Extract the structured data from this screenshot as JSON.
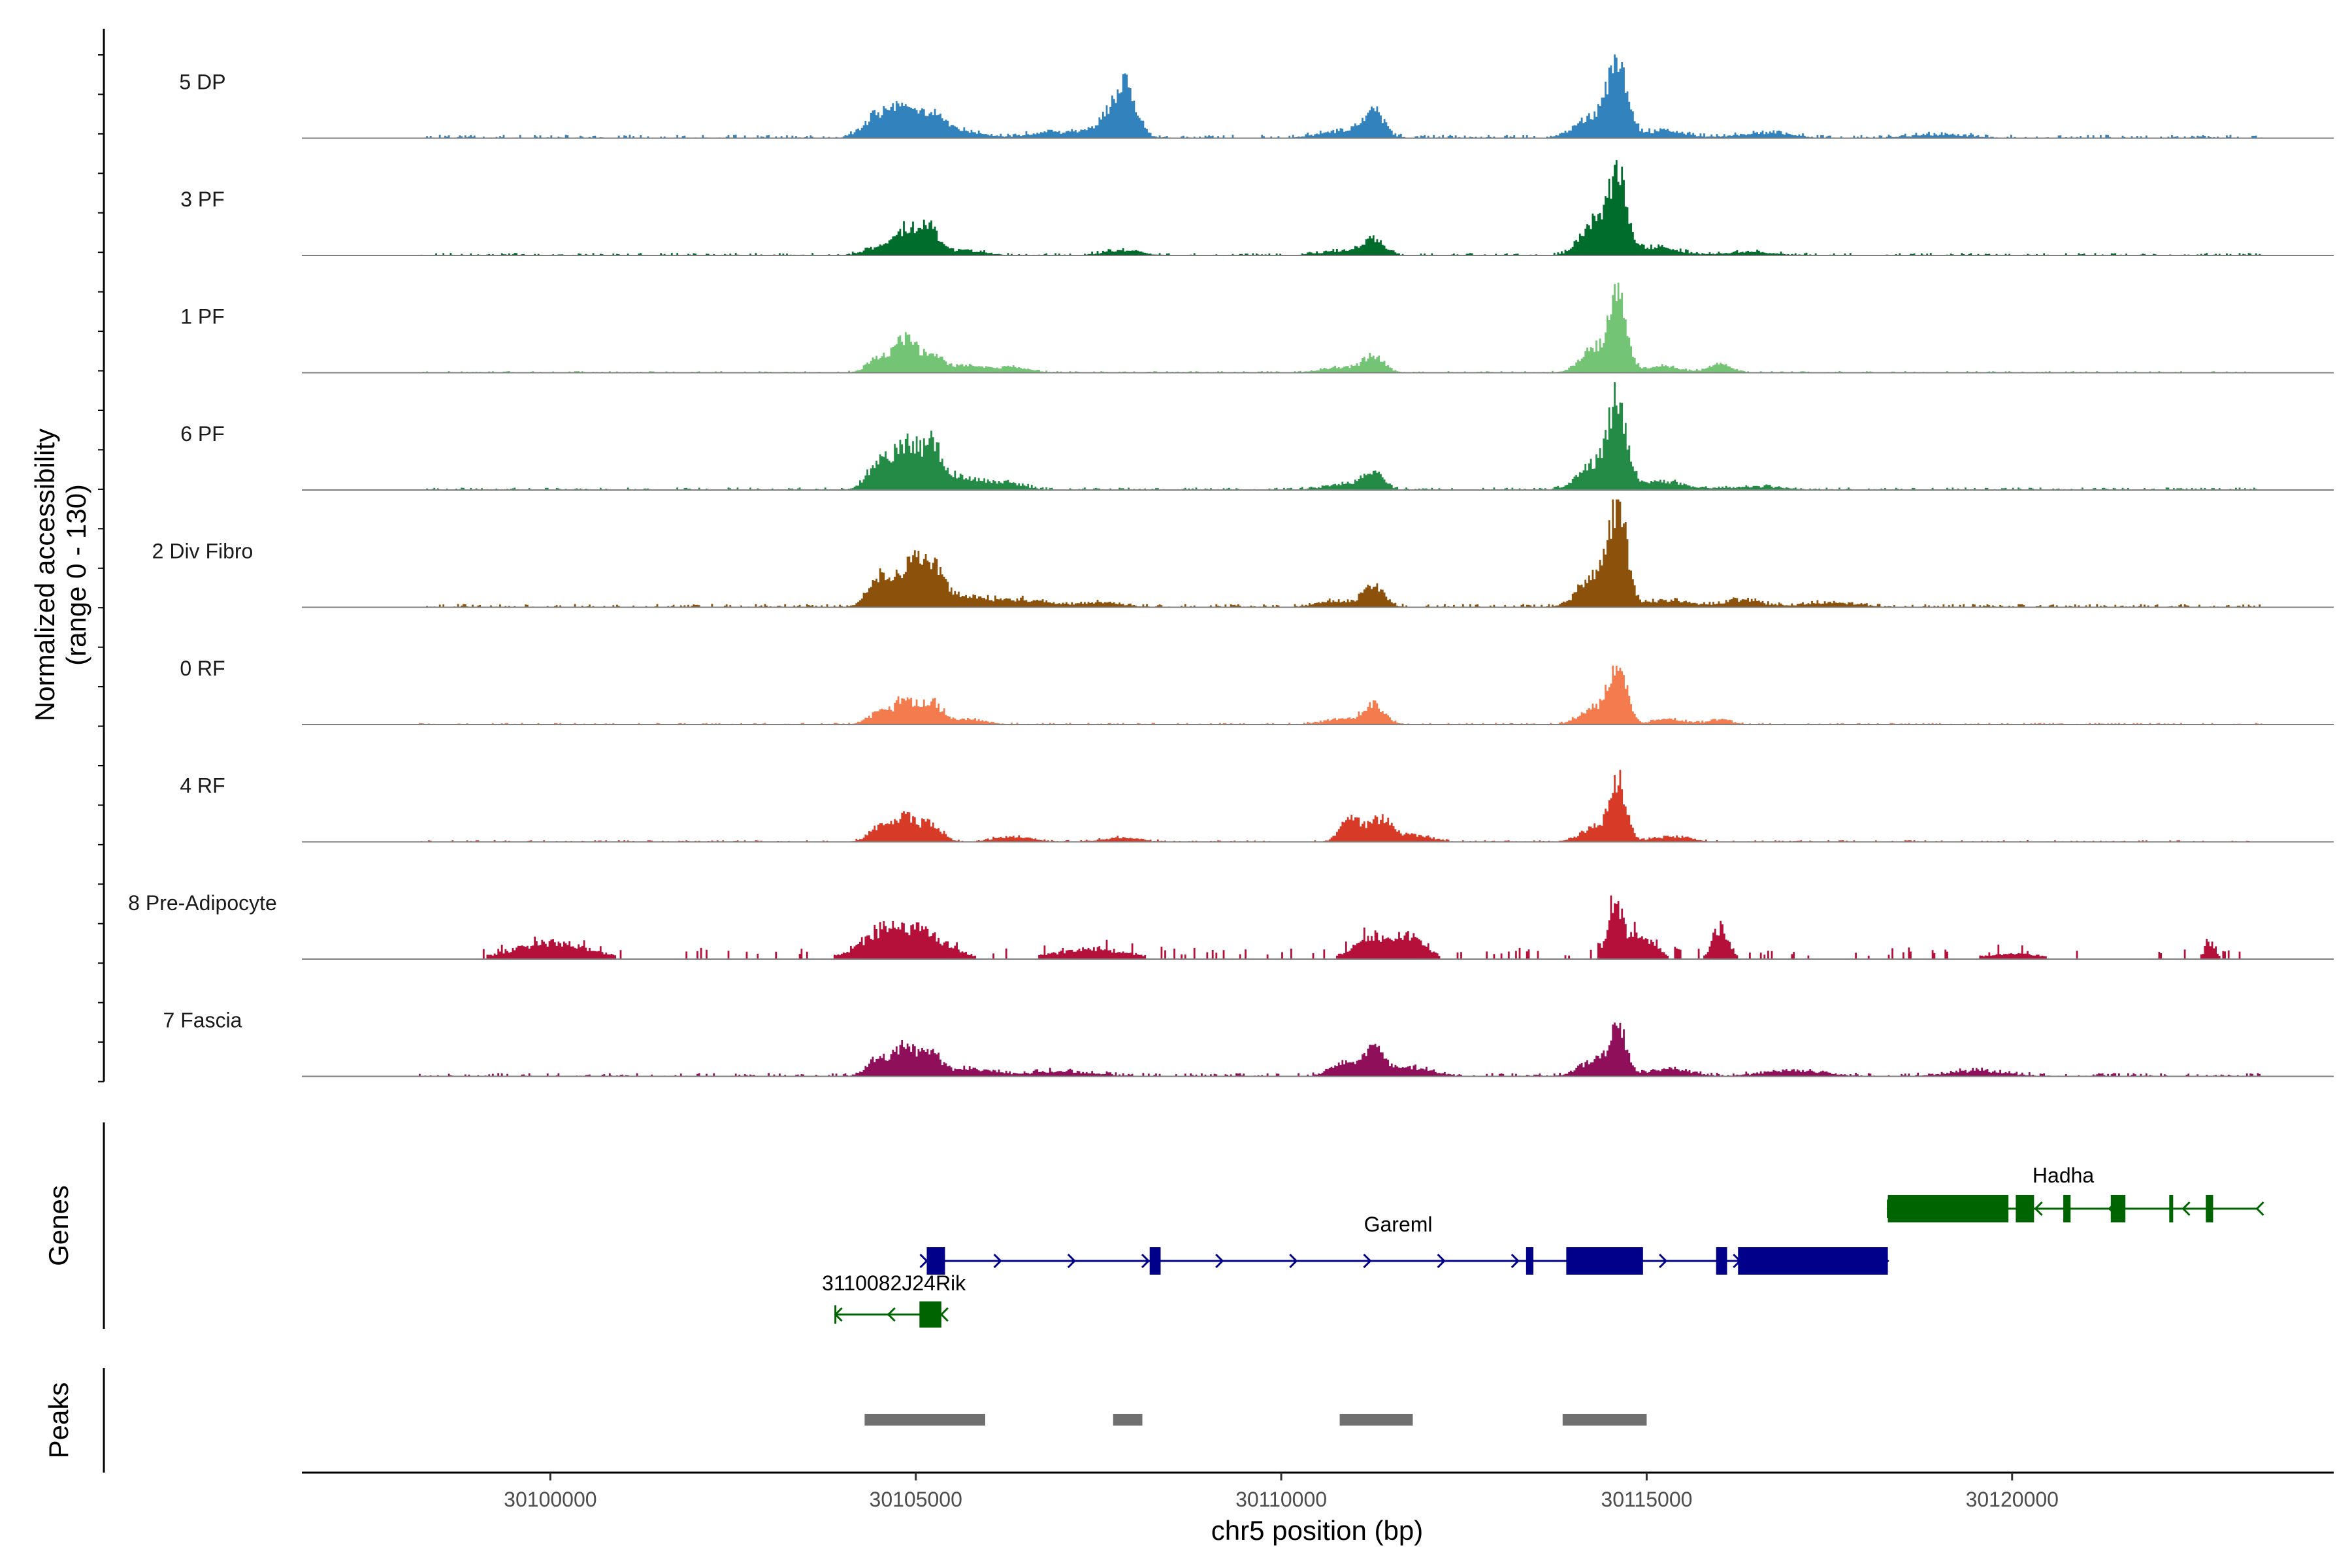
{
  "chart_data": {
    "type": "coverage_track",
    "chromosome": "chr5",
    "xlabel": "chr5 position (bp)",
    "ylabel_line1": "Normalized accessibility",
    "ylabel_line2": "(range 0 - 130)",
    "xlim": [
      30096600,
      30124400
    ],
    "ylim": [
      0,
      130
    ],
    "x_ticks": [
      30100000,
      30105000,
      30110000,
      30115000,
      30120000
    ],
    "x_tick_labels": [
      "30100000",
      "30105000",
      "30110000",
      "30115000",
      "30120000"
    ],
    "data_range": [
      30098200,
      30123400
    ],
    "tracks": [
      {
        "name": "5 DP",
        "color": "#3182bd",
        "baseline": 4,
        "noise": 3,
        "peaks": [
          [
            30104500,
            30,
            200
          ],
          [
            30104850,
            25,
            160
          ],
          [
            30105200,
            22,
            180
          ],
          [
            30105600,
            8,
            300
          ],
          [
            30107850,
            55,
            150
          ],
          [
            30107600,
            18,
            250
          ],
          [
            30106800,
            6,
            300
          ],
          [
            30111250,
            33,
            140
          ],
          [
            30110800,
            8,
            300
          ],
          [
            30114600,
            85,
            120
          ],
          [
            30114300,
            28,
            260
          ],
          [
            30115200,
            8,
            300
          ],
          [
            30116600,
            6,
            350
          ],
          [
            30119000,
            4,
            400
          ]
        ]
      },
      {
        "name": "3 PF",
        "color": "#006d2c",
        "baseline": 3,
        "noise": 2,
        "peaks": [
          [
            30104500,
            10,
            200
          ],
          [
            30104850,
            28,
            150
          ],
          [
            30105150,
            32,
            130
          ],
          [
            30105600,
            6,
            300
          ],
          [
            30107800,
            6,
            250
          ],
          [
            30111250,
            18,
            140
          ],
          [
            30110800,
            5,
            300
          ],
          [
            30114600,
            80,
            120
          ],
          [
            30114300,
            40,
            200
          ],
          [
            30115100,
            10,
            300
          ],
          [
            30116400,
            4,
            350
          ]
        ]
      },
      {
        "name": "1 PF",
        "color": "#74c476",
        "baseline": 2,
        "noise": 2,
        "peaks": [
          [
            30104500,
            18,
            160
          ],
          [
            30104850,
            38,
            140
          ],
          [
            30105200,
            22,
            150
          ],
          [
            30105700,
            8,
            250
          ],
          [
            30106300,
            6,
            250
          ],
          [
            30111250,
            20,
            140
          ],
          [
            30110800,
            6,
            250
          ],
          [
            30114600,
            90,
            110
          ],
          [
            30114300,
            30,
            200
          ],
          [
            30115200,
            8,
            250
          ],
          [
            30116000,
            10,
            150
          ]
        ]
      },
      {
        "name": "6 PF",
        "color": "#238b45",
        "baseline": 3,
        "noise": 2,
        "peaks": [
          [
            30104500,
            35,
            160
          ],
          [
            30104850,
            48,
            150
          ],
          [
            30105200,
            50,
            150
          ],
          [
            30105600,
            14,
            250
          ],
          [
            30106200,
            8,
            250
          ],
          [
            30111250,
            20,
            140
          ],
          [
            30110800,
            6,
            250
          ],
          [
            30114600,
            95,
            120
          ],
          [
            30114300,
            32,
            220
          ],
          [
            30115200,
            10,
            300
          ],
          [
            30116500,
            4,
            400
          ]
        ]
      },
      {
        "name": "2 Div Fibro",
        "color": "#8c510a",
        "baseline": 4,
        "noise": 3,
        "peaks": [
          [
            30104500,
            35,
            160
          ],
          [
            30104900,
            45,
            150
          ],
          [
            30105200,
            48,
            160
          ],
          [
            30105700,
            12,
            300
          ],
          [
            30106500,
            8,
            300
          ],
          [
            30107500,
            6,
            300
          ],
          [
            30111250,
            28,
            140
          ],
          [
            30110700,
            7,
            250
          ],
          [
            30114600,
            115,
            120
          ],
          [
            30114300,
            40,
            220
          ],
          [
            30115300,
            8,
            300
          ],
          [
            30116300,
            8,
            250
          ],
          [
            30117500,
            5,
            400
          ]
        ]
      },
      {
        "name": "0 RF",
        "color": "#f47b4d",
        "baseline": 2,
        "noise": 2,
        "peaks": [
          [
            30104500,
            14,
            160
          ],
          [
            30104850,
            28,
            140
          ],
          [
            30105200,
            26,
            140
          ],
          [
            30105700,
            6,
            250
          ],
          [
            30111250,
            25,
            140
          ],
          [
            30110800,
            6,
            250
          ],
          [
            30114600,
            70,
            110
          ],
          [
            30114300,
            22,
            200
          ],
          [
            30115300,
            6,
            250
          ],
          [
            30116000,
            6,
            150
          ]
        ]
      },
      {
        "name": "4 RF",
        "color": "#d73b27",
        "baseline": 2,
        "noise": 2,
        "peaks": [
          [
            30104500,
            18,
            150
          ],
          [
            30104850,
            28,
            140
          ],
          [
            30105200,
            22,
            140
          ],
          [
            30106300,
            6,
            250
          ],
          [
            30107800,
            5,
            250
          ],
          [
            30110950,
            30,
            140
          ],
          [
            30111350,
            26,
            140
          ],
          [
            30111800,
            8,
            250
          ],
          [
            30114600,
            70,
            110
          ],
          [
            30114300,
            18,
            200
          ],
          [
            30115300,
            6,
            250
          ]
        ]
      },
      {
        "name": "8 Pre-Adipocyte",
        "color": "#b4103a",
        "baseline": 3,
        "noise": 10,
        "sparse": true,
        "peaks": [
          [
            30100000,
            20,
            500
          ],
          [
            30105000,
            30,
            400
          ],
          [
            30104500,
            18,
            350
          ],
          [
            30107400,
            12,
            500
          ],
          [
            30111300,
            25,
            300
          ],
          [
            30111800,
            20,
            200
          ],
          [
            30114550,
            60,
            100
          ],
          [
            30114900,
            28,
            200
          ],
          [
            30116000,
            38,
            110
          ],
          [
            30120000,
            6,
            500
          ],
          [
            30122700,
            18,
            80
          ]
        ]
      },
      {
        "name": "7 Fascia",
        "color": "#8f0f5a",
        "baseline": 4,
        "noise": 3,
        "peaks": [
          [
            30104500,
            20,
            160
          ],
          [
            30104850,
            32,
            140
          ],
          [
            30105200,
            24,
            150
          ],
          [
            30105800,
            8,
            300
          ],
          [
            30107000,
            6,
            400
          ],
          [
            30110800,
            16,
            160
          ],
          [
            30111250,
            32,
            150
          ],
          [
            30111800,
            10,
            250
          ],
          [
            30114600,
            52,
            110
          ],
          [
            30114300,
            18,
            220
          ],
          [
            30115300,
            8,
            300
          ],
          [
            30117000,
            7,
            400
          ],
          [
            30119500,
            6,
            400
          ]
        ]
      }
    ],
    "genes": [
      {
        "name": "Gareml",
        "color": "#00008b",
        "strand": "+",
        "start": 30105150,
        "end": 30118300,
        "exons": [
          [
            30105150,
            30105400
          ],
          [
            30108200,
            30108350
          ],
          [
            30113350,
            30113450
          ],
          [
            30113900,
            30114950
          ],
          [
            30115950,
            30116100
          ],
          [
            30116250,
            30118300
          ]
        ],
        "label_pos": 30111600
      },
      {
        "name": "Hadha",
        "color": "#006400",
        "strand": "-",
        "start": 30118300,
        "end": 30123350,
        "exons": [
          [
            30118300,
            30119950
          ],
          [
            30120050,
            30120300
          ],
          [
            30120700,
            30120800
          ],
          [
            30121350,
            30121550
          ],
          [
            30122150,
            30122200
          ],
          [
            30122650,
            30122750
          ]
        ],
        "label_pos": 30120700
      },
      {
        "name": "3110082J24Rik",
        "color": "#006400",
        "strand": "-",
        "start": 30103900,
        "end": 30105350,
        "exons": [
          [
            30105050,
            30105350
          ]
        ],
        "label_pos": 30104700
      }
    ],
    "peaks_panel": [
      [
        30104300,
        30105950
      ],
      [
        30107700,
        30108100
      ],
      [
        30110800,
        30111800
      ],
      [
        30113850,
        30115000
      ]
    ]
  },
  "panels": {
    "genes_title": "Genes",
    "peaks_title": "Peaks"
  },
  "colors": {
    "baseline": "#7f7f7f",
    "peak_bar": "#707070",
    "axis": "#000000"
  }
}
